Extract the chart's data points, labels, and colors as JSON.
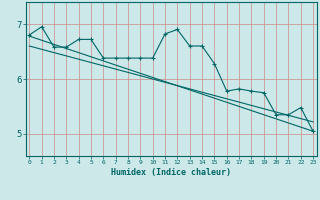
{
  "xlabel": "Humidex (Indice chaleur)",
  "bg_color": "#cce8e8",
  "line_color": "#006666",
  "red_grid_color": "#cc8888",
  "x_ticks": [
    0,
    1,
    2,
    3,
    4,
    5,
    6,
    7,
    8,
    9,
    10,
    11,
    12,
    13,
    14,
    15,
    16,
    17,
    18,
    19,
    20,
    21,
    22,
    23
  ],
  "y_ticks": [
    5,
    6,
    7
  ],
  "xlim": [
    -0.3,
    23.3
  ],
  "ylim": [
    4.6,
    7.4
  ],
  "main_line_x": [
    0,
    1,
    2,
    3,
    4,
    5,
    6,
    7,
    8,
    9,
    10,
    11,
    12,
    13,
    14,
    15,
    16,
    17,
    18,
    19,
    20,
    21,
    22,
    23
  ],
  "main_line_y": [
    6.8,
    6.95,
    6.58,
    6.58,
    6.72,
    6.72,
    6.38,
    6.38,
    6.38,
    6.38,
    6.38,
    6.82,
    6.9,
    6.6,
    6.6,
    6.28,
    5.78,
    5.82,
    5.78,
    5.75,
    5.35,
    5.35,
    5.48,
    5.05
  ],
  "trend1_x": [
    0,
    23
  ],
  "trend1_y": [
    6.78,
    5.05
  ],
  "trend2_x": [
    0,
    23
  ],
  "trend2_y": [
    6.6,
    5.22
  ],
  "figsize": [
    3.2,
    2.0
  ],
  "dpi": 100
}
